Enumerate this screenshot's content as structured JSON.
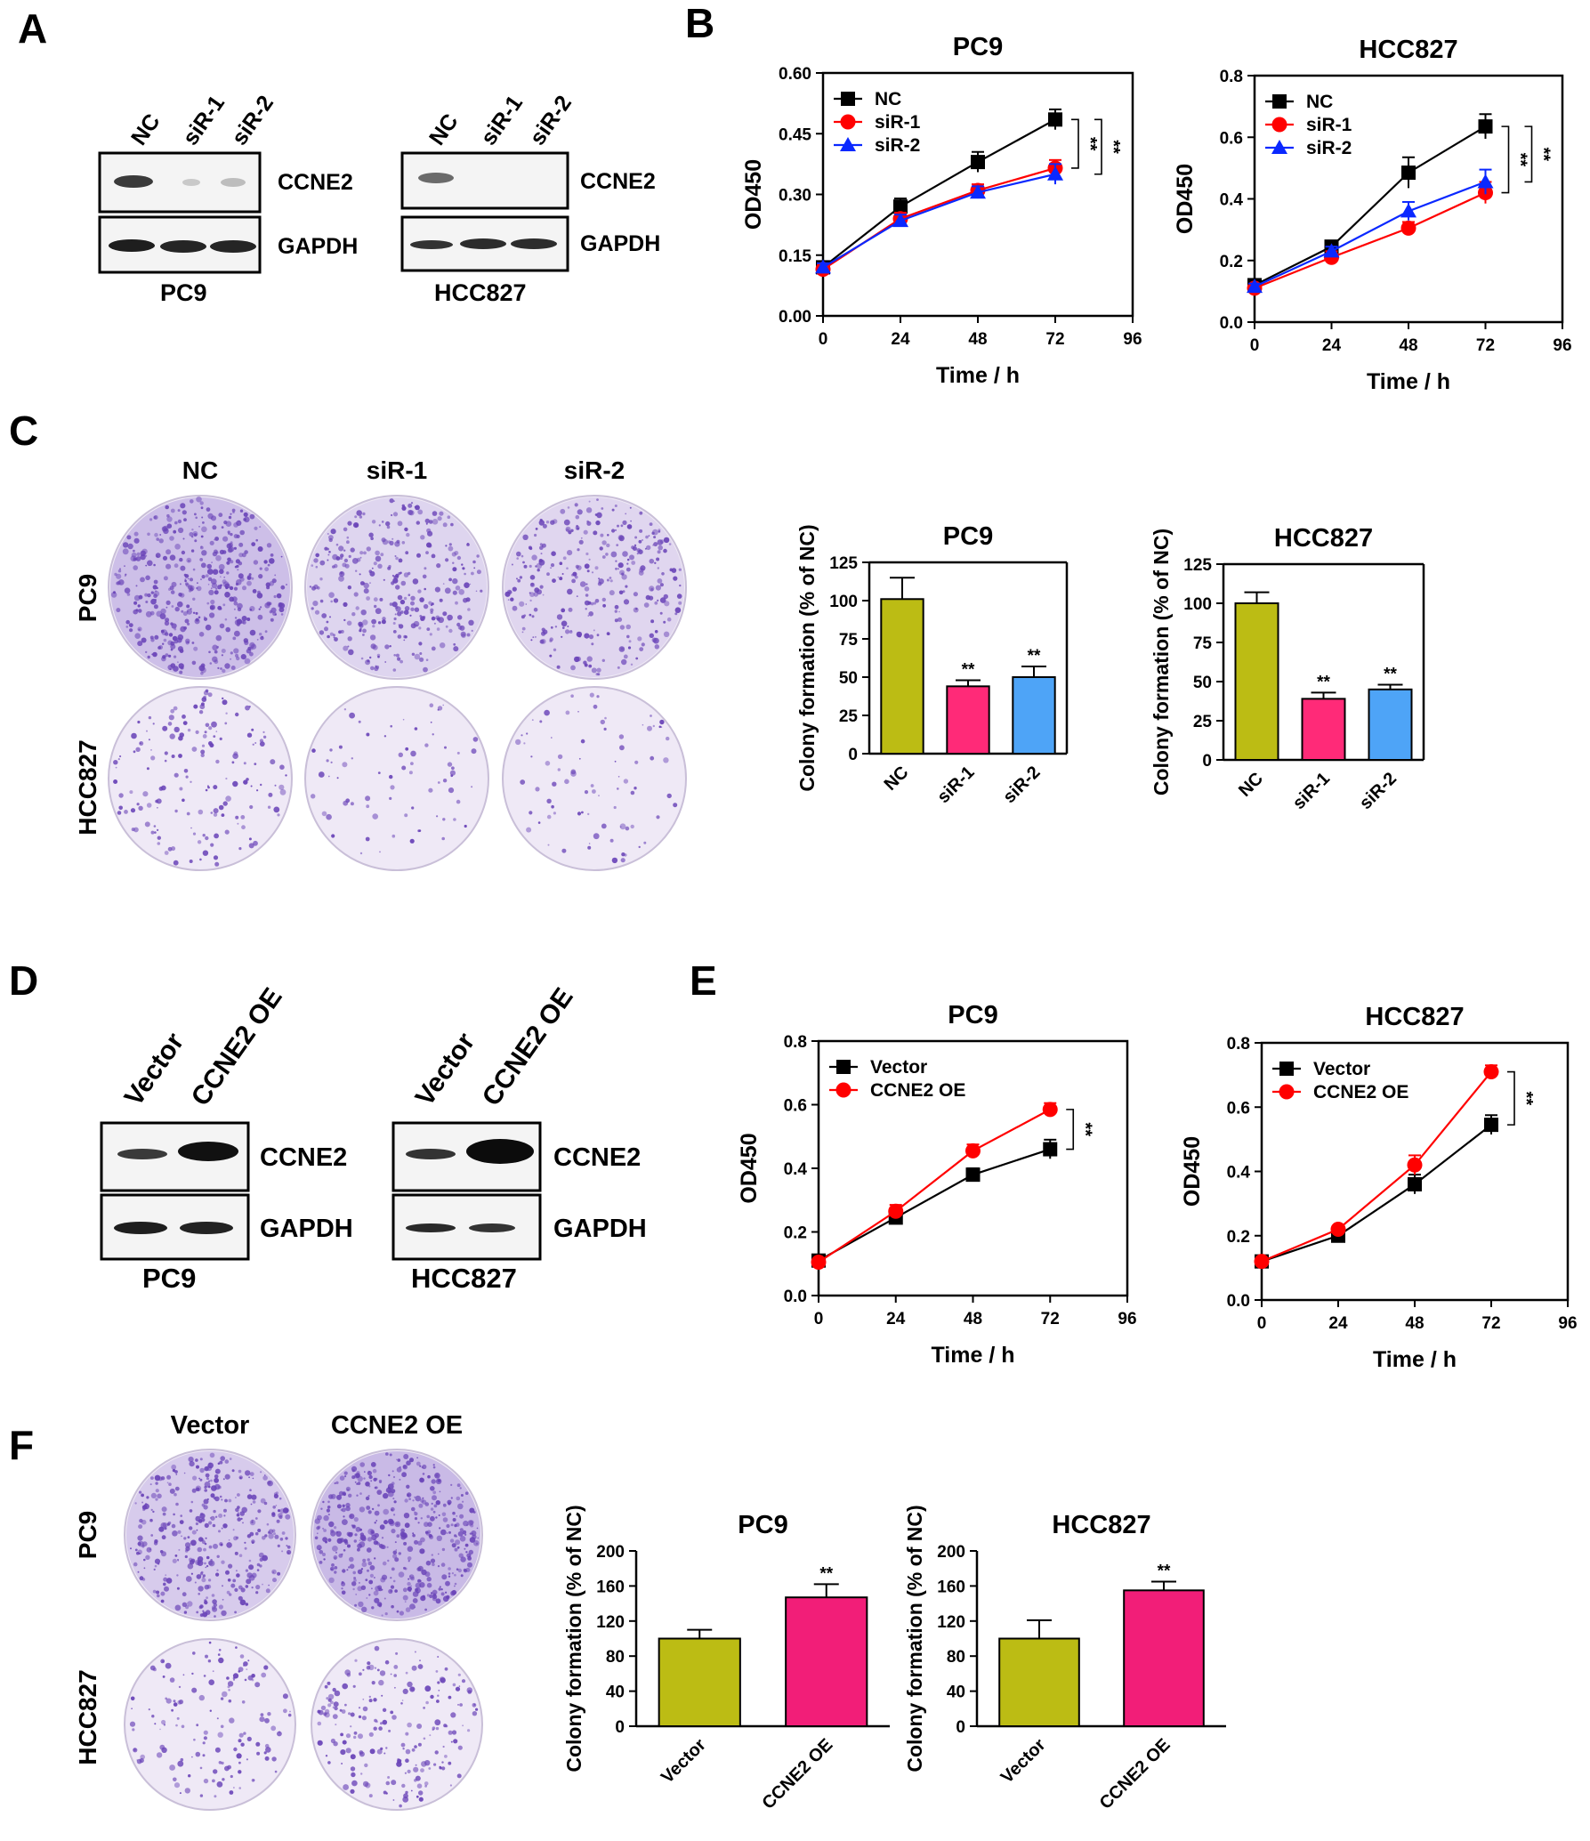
{
  "panel_labels": {
    "a": "A",
    "b": "B",
    "c": "C",
    "d": "D",
    "e": "E",
    "f": "F"
  },
  "blot_markers": {
    "ccne2": "CCNE2",
    "gapdh": "GAPDH"
  },
  "cell_lines": {
    "pc9": "PC9",
    "hcc827": "HCC827"
  },
  "lanes_kd": [
    "NC",
    "siR-1",
    "siR-2"
  ],
  "lanes_oe": [
    "Vector",
    "CCNE2 OE"
  ],
  "significance": "**",
  "colors": {
    "nc": "#bcbc14",
    "siR1": "#ff2a78",
    "siR2": "#4ea4f7",
    "oe": "#f21e78",
    "line_black": "#000000",
    "line_red": "#ff0000",
    "line_blue": "#0a28ff",
    "crystal_violet": "#6a44b8",
    "dish_bg": "#efe9f6"
  },
  "chart_data": [
    {
      "id": "b_pc9",
      "panel": "B",
      "type": "line",
      "title": "PC9",
      "xlabel": "Time / h",
      "ylabel": "OD450",
      "x": [
        0,
        24,
        48,
        72
      ],
      "xlim": [
        0,
        96
      ],
      "xticks": [
        0,
        24,
        48,
        72,
        96
      ],
      "ylim": [
        0,
        0.6
      ],
      "yticks": [
        "0.00",
        "0.15",
        "0.30",
        "0.45",
        "0.60"
      ],
      "legend": "top-left",
      "series": [
        {
          "name": "NC",
          "color": "#000000",
          "marker": "square",
          "values": [
            0.12,
            0.27,
            0.38,
            0.485
          ],
          "errors": [
            0.01,
            0.02,
            0.025,
            0.025
          ]
        },
        {
          "name": "siR-1",
          "color": "#ff0000",
          "marker": "circle",
          "values": [
            0.115,
            0.24,
            0.31,
            0.365
          ],
          "errors": [
            0.01,
            0.015,
            0.015,
            0.02
          ]
        },
        {
          "name": "siR-2",
          "color": "#0a28ff",
          "marker": "triangle",
          "values": [
            0.12,
            0.235,
            0.305,
            0.35
          ],
          "errors": [
            0.01,
            0.015,
            0.015,
            0.025
          ]
        }
      ]
    },
    {
      "id": "b_hcc827",
      "panel": "B",
      "type": "line",
      "title": "HCC827",
      "xlabel": "Time / h",
      "ylabel": "OD450",
      "x": [
        0,
        24,
        48,
        72
      ],
      "xlim": [
        0,
        96
      ],
      "xticks": [
        0,
        24,
        48,
        72,
        96
      ],
      "ylim": [
        0,
        0.8
      ],
      "yticks": [
        "0.0",
        "0.2",
        "0.4",
        "0.6",
        "0.8"
      ],
      "legend": "top-left",
      "series": [
        {
          "name": "NC",
          "color": "#000000",
          "marker": "square",
          "values": [
            0.12,
            0.245,
            0.485,
            0.635
          ],
          "errors": [
            0.01,
            0.015,
            0.05,
            0.04
          ]
        },
        {
          "name": "siR-1",
          "color": "#ff0000",
          "marker": "circle",
          "values": [
            0.11,
            0.21,
            0.305,
            0.42
          ],
          "errors": [
            0.01,
            0.02,
            0.02,
            0.035
          ]
        },
        {
          "name": "siR-2",
          "color": "#0a28ff",
          "marker": "triangle",
          "values": [
            0.115,
            0.23,
            0.36,
            0.455
          ],
          "errors": [
            0.01,
            0.015,
            0.03,
            0.04
          ]
        }
      ]
    },
    {
      "id": "c_pc9",
      "panel": "C",
      "type": "bar",
      "title": "PC9",
      "ylabel": "Colony formation (% of NC)",
      "categories": [
        "NC",
        "siR-1",
        "siR-2"
      ],
      "values": [
        101,
        44,
        50
      ],
      "errors": [
        14,
        4,
        7
      ],
      "sig": [
        "",
        "**",
        "**"
      ],
      "colors": [
        "#bcbc14",
        "#ff2a78",
        "#4ea4f7"
      ],
      "ylim": [
        0,
        125
      ],
      "yticks": [
        "0",
        "25",
        "50",
        "75",
        "100",
        "125"
      ]
    },
    {
      "id": "c_hcc827",
      "panel": "C",
      "type": "bar",
      "title": "HCC827",
      "ylabel": "Colony formation (% of NC)",
      "categories": [
        "NC",
        "siR-1",
        "siR-2"
      ],
      "values": [
        100,
        39,
        45
      ],
      "errors": [
        7,
        4,
        3
      ],
      "sig": [
        "",
        "**",
        "**"
      ],
      "colors": [
        "#bcbc14",
        "#ff2a78",
        "#4ea4f7"
      ],
      "ylim": [
        0,
        125
      ],
      "yticks": [
        "0",
        "25",
        "50",
        "75",
        "100",
        "125"
      ]
    },
    {
      "id": "e_pc9",
      "panel": "E",
      "type": "line",
      "title": "PC9",
      "xlabel": "Time / h",
      "ylabel": "OD450",
      "x": [
        0,
        24,
        48,
        72
      ],
      "xlim": [
        0,
        96
      ],
      "xticks": [
        0,
        24,
        48,
        72,
        96
      ],
      "ylim": [
        0,
        0.8
      ],
      "yticks": [
        "0.0",
        "0.2",
        "0.4",
        "0.6",
        "0.8"
      ],
      "legend": "top-left",
      "series": [
        {
          "name": "Vector",
          "color": "#000000",
          "marker": "square",
          "values": [
            0.11,
            0.245,
            0.38,
            0.46
          ],
          "errors": [
            0.01,
            0.015,
            0.02,
            0.03
          ]
        },
        {
          "name": "CCNE2 OE",
          "color": "#ff0000",
          "marker": "circle",
          "values": [
            0.105,
            0.265,
            0.455,
            0.585
          ],
          "errors": [
            0.01,
            0.02,
            0.02,
            0.02
          ]
        }
      ]
    },
    {
      "id": "e_hcc827",
      "panel": "E",
      "type": "line",
      "title": "HCC827",
      "xlabel": "Time / h",
      "ylabel": "OD450",
      "x": [
        0,
        24,
        48,
        72
      ],
      "xlim": [
        0,
        96
      ],
      "xticks": [
        0,
        24,
        48,
        72,
        96
      ],
      "ylim": [
        0,
        0.8
      ],
      "yticks": [
        "0.0",
        "0.2",
        "0.4",
        "0.6",
        "0.8"
      ],
      "legend": "top-left",
      "series": [
        {
          "name": "Vector",
          "color": "#000000",
          "marker": "square",
          "values": [
            0.12,
            0.2,
            0.36,
            0.545
          ],
          "errors": [
            0.01,
            0.01,
            0.03,
            0.03
          ]
        },
        {
          "name": "CCNE2 OE",
          "color": "#ff0000",
          "marker": "circle",
          "values": [
            0.12,
            0.22,
            0.42,
            0.71
          ],
          "errors": [
            0.01,
            0.01,
            0.03,
            0.02
          ]
        }
      ]
    },
    {
      "id": "f_pc9",
      "panel": "F",
      "type": "bar",
      "title": "PC9",
      "ylabel": "Colony formation (% of NC)",
      "categories": [
        "Vector",
        "CCNE2 OE"
      ],
      "values": [
        100,
        147
      ],
      "errors": [
        10,
        15
      ],
      "sig": [
        "",
        "**"
      ],
      "colors": [
        "#bcbc14",
        "#f21e78"
      ],
      "ylim": [
        0,
        200
      ],
      "yticks": [
        "0",
        "40",
        "80",
        "120",
        "160",
        "200"
      ]
    },
    {
      "id": "f_hcc827",
      "panel": "F",
      "type": "bar",
      "title": "HCC827",
      "ylabel": "Colony formation (% of NC)",
      "categories": [
        "Vector",
        "CCNE2 OE"
      ],
      "values": [
        100,
        155
      ],
      "errors": [
        21,
        10
      ],
      "sig": [
        "",
        "**"
      ],
      "colors": [
        "#bcbc14",
        "#f21e78"
      ],
      "ylim": [
        0,
        200
      ],
      "yticks": [
        "0",
        "40",
        "80",
        "120",
        "160",
        "200"
      ]
    }
  ]
}
